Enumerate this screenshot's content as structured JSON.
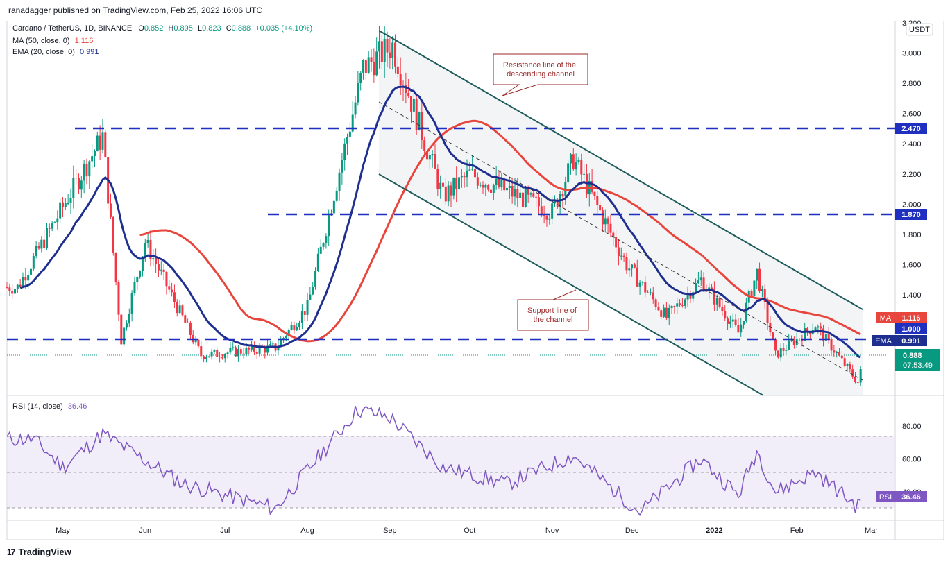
{
  "header": {
    "published": "ranadagger published on TradingView.com, Feb 25, 2022 16:06 UTC"
  },
  "legend": {
    "symbol": "Cardano / TetherUS, 1D, BINANCE",
    "o_label": "O",
    "o_value": "0.852",
    "h_label": "H",
    "h_value": "0.895",
    "l_label": "L",
    "l_value": "0.823",
    "c_label": "C",
    "c_value": "0.888",
    "change": "+0.035 (+4.10%)",
    "ma_label": "MA (50, close, 0)",
    "ma_value": "1.116",
    "ema_label": "EMA (20, close, 0)",
    "ema_value": "0.991",
    "rsi_label": "RSI (14, close)",
    "rsi_value": "36.46"
  },
  "price_axis": {
    "currency": "USDT",
    "ticks": [
      "3.200",
      "3.000",
      "2.800",
      "2.600",
      "2.400",
      "2.200",
      "2.000",
      "1.800",
      "1.600",
      "1.400",
      "1.200"
    ]
  },
  "rsi_axis": {
    "ticks": [
      "80.00",
      "60.00",
      "40.00"
    ]
  },
  "time_axis": {
    "labels": [
      "May",
      "Jun",
      "Jul",
      "Aug",
      "Sep",
      "Oct",
      "Nov",
      "Dec",
      "2022",
      "Feb",
      "Mar"
    ]
  },
  "badges": {
    "level_2470": "2.470",
    "level_1870": "1.870",
    "ma": {
      "label": "MA",
      "value": "1.116"
    },
    "level_1000": "1.000",
    "ema": {
      "label": "EMA",
      "value": "0.991"
    },
    "last_price": "0.888",
    "countdown": "07:53:49",
    "rsi": {
      "label": "RSI",
      "value": "36.46"
    }
  },
  "annotations": {
    "resistance": "Resistance line of the descending channel",
    "support": "Support line of the channel"
  },
  "footer": {
    "brand": "TradingView",
    "logo": "17"
  },
  "colors": {
    "up": "#089981",
    "down": "#f23645",
    "ema": "#1e2f8f",
    "ma": "#e8453c",
    "levels": "#1f2fbf",
    "channel": "#1e5c5c",
    "rsi_line": "#7e57c2"
  },
  "chart_data": [
    {
      "type": "candlestick",
      "title": "Cardano / TetherUS, 1D, BINANCE",
      "x_range": [
        "2021-04-10",
        "2022-03-10"
      ],
      "ylim": [
        0.78,
        3.2
      ],
      "horizontal_levels": [
        2.47,
        1.87,
        1.0
      ],
      "key_points": [
        {
          "date": "2021-04-14",
          "price": 1.45
        },
        {
          "date": "2021-05-16",
          "price": 2.45
        },
        {
          "date": "2021-05-23",
          "price": 1.1
        },
        {
          "date": "2021-06-01",
          "price": 1.75
        },
        {
          "date": "2021-06-22",
          "price": 1.0
        },
        {
          "date": "2021-07-20",
          "price": 1.05
        },
        {
          "date": "2021-08-01",
          "price": 1.32
        },
        {
          "date": "2021-08-22",
          "price": 2.9
        },
        {
          "date": "2021-09-02",
          "price": 3.05
        },
        {
          "date": "2021-09-21",
          "price": 2.05
        },
        {
          "date": "2021-10-01",
          "price": 2.2
        },
        {
          "date": "2021-11-01",
          "price": 1.95
        },
        {
          "date": "2021-11-09",
          "price": 2.3
        },
        {
          "date": "2021-11-29",
          "price": 1.6
        },
        {
          "date": "2021-12-14",
          "price": 1.25
        },
        {
          "date": "2021-12-27",
          "price": 1.5
        },
        {
          "date": "2022-01-10",
          "price": 1.15
        },
        {
          "date": "2022-01-17",
          "price": 1.55
        },
        {
          "date": "2022-01-24",
          "price": 1.0
        },
        {
          "date": "2022-02-08",
          "price": 1.2
        },
        {
          "date": "2022-02-24",
          "price": 0.82
        },
        {
          "date": "2022-02-25",
          "price": 0.888
        }
      ],
      "series": [
        {
          "name": "MA (50, close, 0)",
          "last": 1.116
        },
        {
          "name": "EMA (20, close, 0)",
          "last": 0.991
        }
      ],
      "channel": {
        "resistance": [
          {
            "date": "2021-08-31",
            "price": 3.15
          },
          {
            "date": "2022-02-27",
            "price": 1.2
          }
        ],
        "support": [
          {
            "date": "2021-08-31",
            "price": 2.15
          },
          {
            "date": "2022-01-30",
            "price": 0.78
          }
        ]
      }
    },
    {
      "type": "line",
      "title": "RSI (14, close)",
      "ylim": [
        25,
        95
      ],
      "bands": [
        30,
        50,
        70
      ],
      "key_points": [
        {
          "date": "2021-04-20",
          "value": 72
        },
        {
          "date": "2021-05-01",
          "value": 55
        },
        {
          "date": "2021-05-16",
          "value": 75
        },
        {
          "date": "2021-06-15",
          "value": 45
        },
        {
          "date": "2021-07-20",
          "value": 30
        },
        {
          "date": "2021-08-20",
          "value": 90
        },
        {
          "date": "2021-09-01",
          "value": 85
        },
        {
          "date": "2021-09-21",
          "value": 55
        },
        {
          "date": "2021-10-15",
          "value": 45
        },
        {
          "date": "2021-11-09",
          "value": 62
        },
        {
          "date": "2021-12-04",
          "value": 28
        },
        {
          "date": "2021-12-27",
          "value": 60
        },
        {
          "date": "2022-01-10",
          "value": 38
        },
        {
          "date": "2022-01-17",
          "value": 65
        },
        {
          "date": "2022-01-24",
          "value": 40
        },
        {
          "date": "2022-02-08",
          "value": 52
        },
        {
          "date": "2022-02-24",
          "value": 31
        },
        {
          "date": "2022-02-25",
          "value": 36.46
        }
      ]
    }
  ]
}
